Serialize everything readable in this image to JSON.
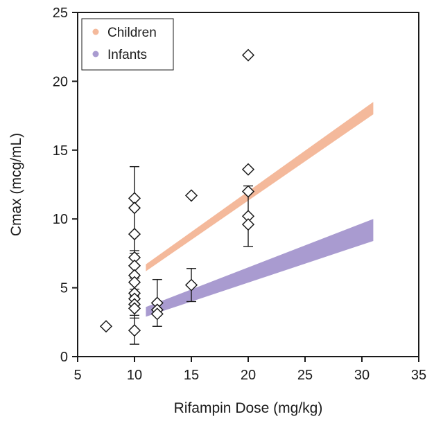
{
  "chart_data": {
    "type": "scatter",
    "title": "",
    "xlabel": "Rifampin Dose (mg/kg)",
    "ylabel": "Cmax (mcg/mL)",
    "xlim": [
      5,
      35
    ],
    "ylim": [
      0,
      25
    ],
    "xticks": [
      5,
      10,
      15,
      20,
      25,
      30,
      35
    ],
    "yticks": [
      0,
      5,
      10,
      15,
      20,
      25
    ],
    "grid": false,
    "legend_position": "top-left",
    "legend": [
      {
        "label": "Children",
        "color": "#f4b99b"
      },
      {
        "label": "Infants",
        "color": "#a99bd0"
      }
    ],
    "bands": [
      {
        "name": "Children",
        "color": "#f4b99b",
        "x": [
          11,
          31
        ],
        "lower": [
          6.2,
          17.6
        ],
        "upper": [
          6.7,
          18.5
        ]
      },
      {
        "name": "Infants",
        "color": "#a99bd0",
        "x": [
          11,
          31
        ],
        "lower": [
          2.9,
          8.4
        ],
        "upper": [
          3.6,
          10.0
        ]
      }
    ],
    "points": [
      {
        "x": 7.5,
        "y": 2.2
      },
      {
        "x": 10,
        "y": 11.5
      },
      {
        "x": 10,
        "y": 10.8
      },
      {
        "x": 10,
        "y": 8.9
      },
      {
        "x": 10,
        "y": 7.2
      },
      {
        "x": 10,
        "y": 6.6
      },
      {
        "x": 10,
        "y": 5.9
      },
      {
        "x": 10,
        "y": 5.4
      },
      {
        "x": 10,
        "y": 4.6
      },
      {
        "x": 10,
        "y": 4.2
      },
      {
        "x": 10,
        "y": 3.8
      },
      {
        "x": 10,
        "y": 3.5
      },
      {
        "x": 10,
        "y": 1.9
      },
      {
        "x": 12,
        "y": 3.9
      },
      {
        "x": 12,
        "y": 3.4
      },
      {
        "x": 12,
        "y": 3.1
      },
      {
        "x": 15,
        "y": 11.7
      },
      {
        "x": 15,
        "y": 5.2
      },
      {
        "x": 20,
        "y": 21.9
      },
      {
        "x": 20,
        "y": 13.6
      },
      {
        "x": 20,
        "y": 12.0
      },
      {
        "x": 20,
        "y": 10.2
      },
      {
        "x": 20,
        "y": 9.6
      }
    ],
    "error_bars": [
      {
        "x": 10,
        "low": 0.9,
        "high": 13.8
      },
      {
        "x": 12,
        "low": 2.2,
        "high": 5.6
      },
      {
        "x": 15,
        "low": 4.0,
        "high": 6.4
      },
      {
        "x": 20,
        "low": 8.0,
        "high": 12.4
      }
    ]
  }
}
